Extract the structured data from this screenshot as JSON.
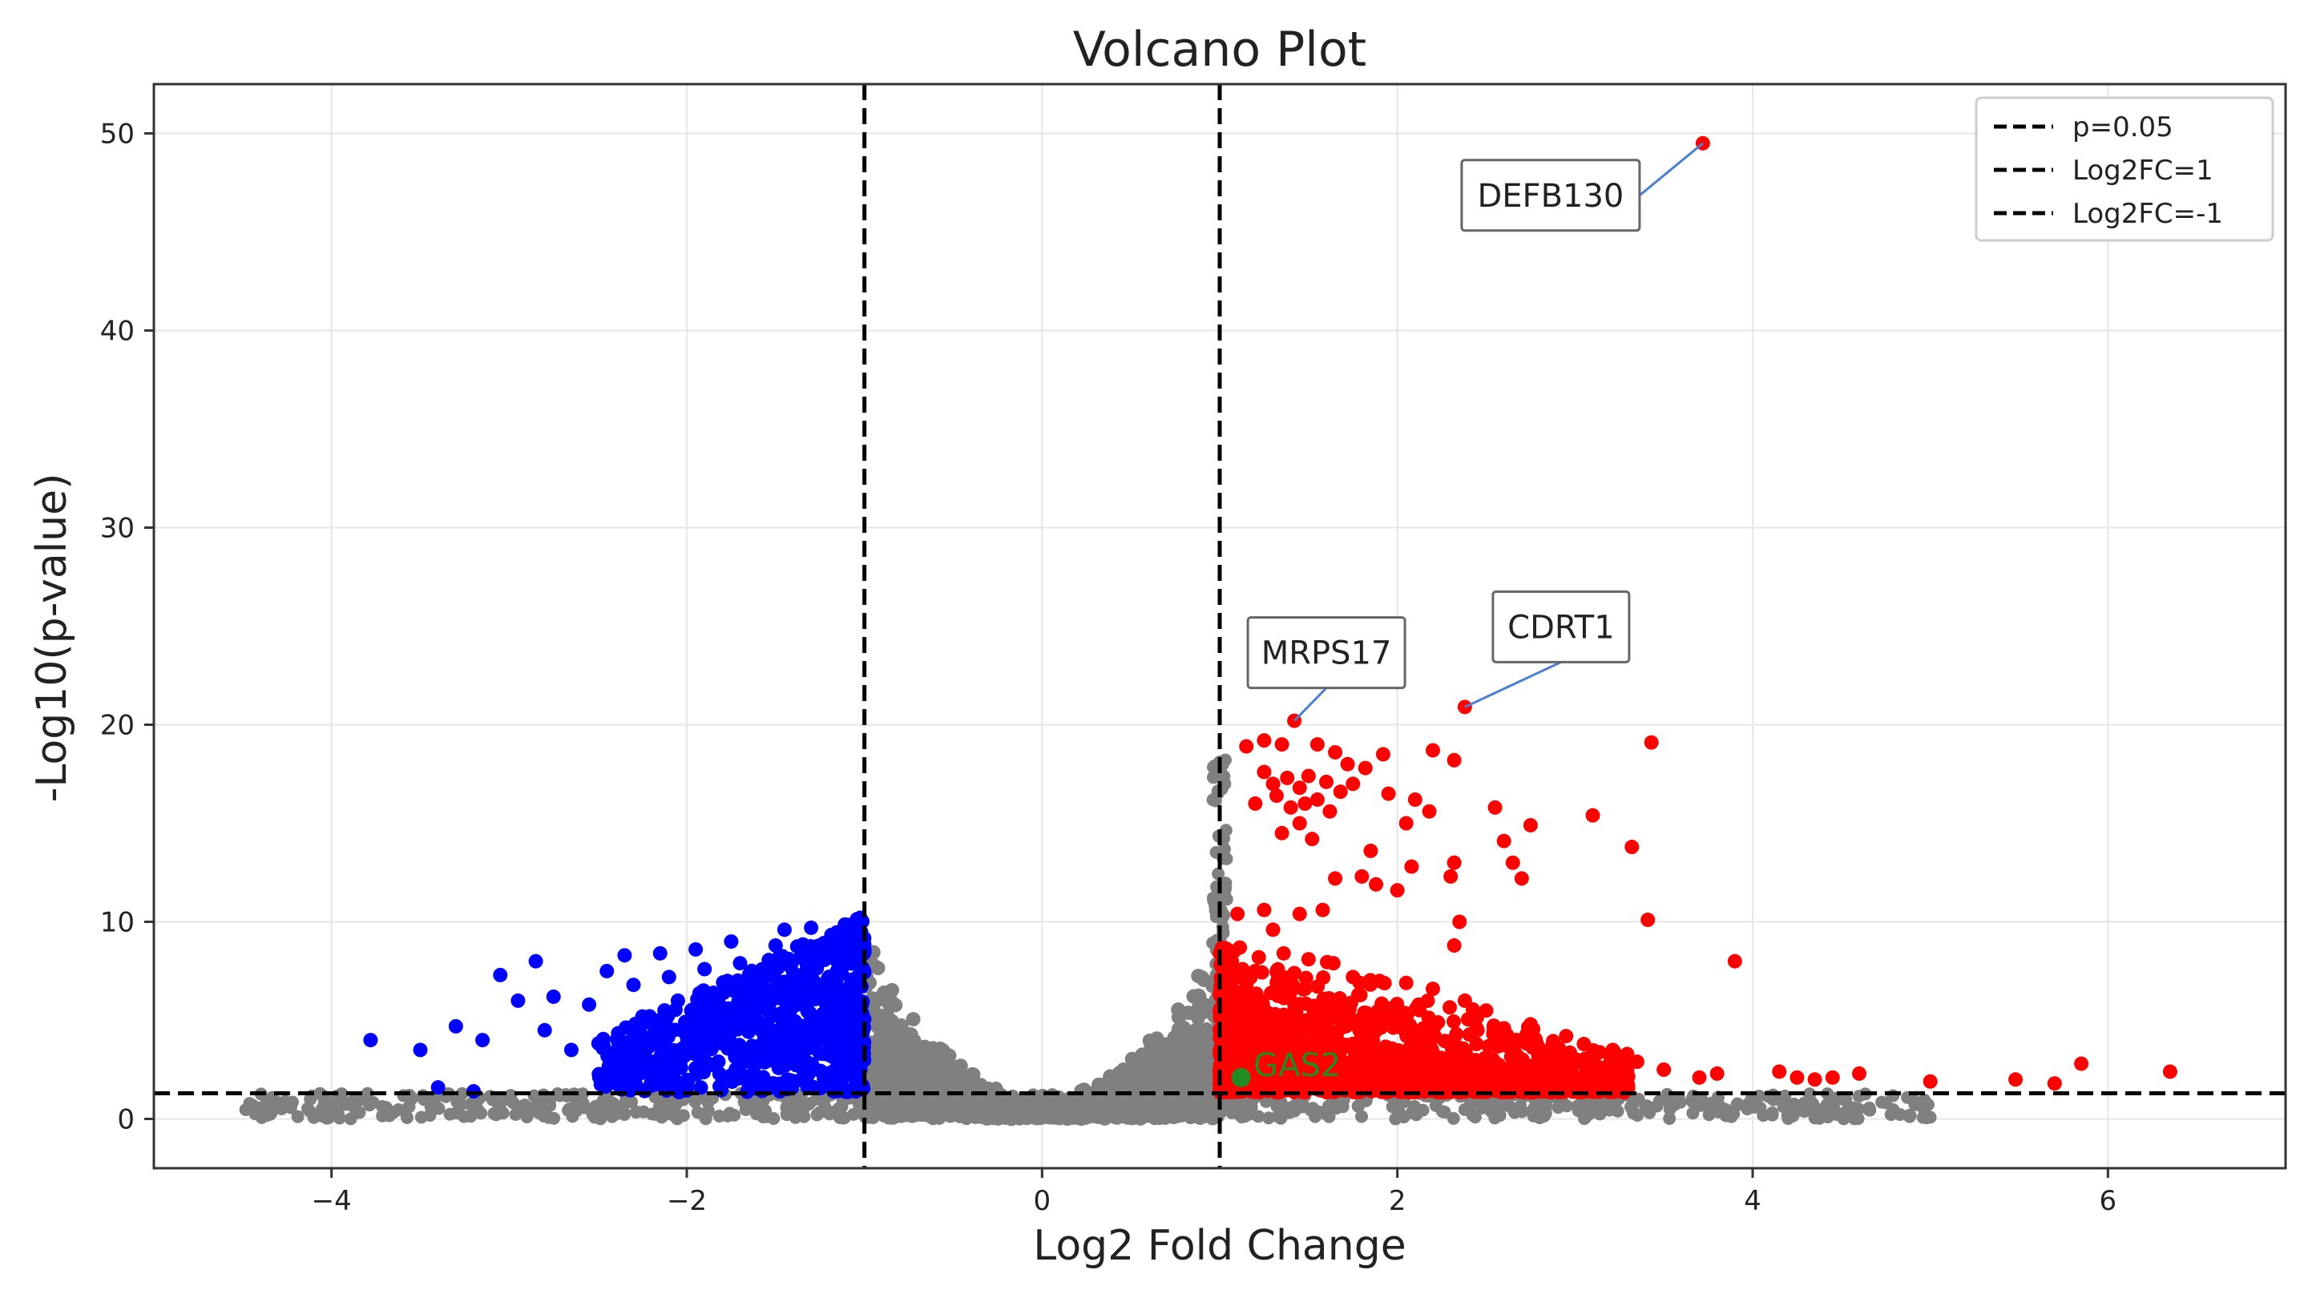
{
  "chart_data": {
    "type": "scatter",
    "title": "Volcano Plot",
    "xlabel": "Log2 Fold Change",
    "ylabel": "-Log10(p-value)",
    "xlim": [
      -5,
      7
    ],
    "ylim": [
      -2.5,
      52.5
    ],
    "x_ticks": [
      -4,
      -2,
      0,
      2,
      4,
      6
    ],
    "x_tick_labels": [
      "−4",
      "−2",
      "0",
      "2",
      "4",
      "6"
    ],
    "y_ticks": [
      0,
      10,
      20,
      30,
      40,
      50
    ],
    "y_tick_labels": [
      "0",
      "10",
      "20",
      "30",
      "40",
      "50"
    ],
    "grid": true,
    "legend": {
      "position": "top-right",
      "entries": [
        {
          "label": "p=0.05",
          "style": "dashed",
          "color": "#000000"
        },
        {
          "label": "Log2FC=1",
          "style": "dashed",
          "color": "#000000"
        },
        {
          "label": "Log2FC=-1",
          "style": "dashed",
          "color": "#000000"
        }
      ]
    },
    "reference_lines": {
      "horizontal": [
        1.3
      ],
      "vertical": [
        -1,
        1
      ]
    },
    "colors": {
      "up": "#ff0000",
      "down": "#0000ff",
      "ns": "#808080",
      "highlight": "#228b22"
    },
    "annotations": [
      {
        "label": "DEFB130",
        "x": 3.72,
        "y": 49.5
      },
      {
        "label": "MRPS17",
        "x": 1.42,
        "y": 20.2
      },
      {
        "label": "CDRT1",
        "x": 2.38,
        "y": 20.9
      }
    ],
    "highlighted_gene": {
      "label": "GAS2",
      "x": 1.12,
      "y": 2.1
    },
    "series": [
      {
        "category": "up",
        "points": [
          [
            3.72,
            49.5
          ],
          [
            1.42,
            20.2
          ],
          [
            2.38,
            20.9
          ],
          [
            1.35,
            19.0
          ],
          [
            1.15,
            18.9
          ],
          [
            1.25,
            19.2
          ],
          [
            1.55,
            19.0
          ],
          [
            1.65,
            18.6
          ],
          [
            1.72,
            18.0
          ],
          [
            1.82,
            17.8
          ],
          [
            1.92,
            18.5
          ],
          [
            2.2,
            18.7
          ],
          [
            2.32,
            18.2
          ],
          [
            1.25,
            17.6
          ],
          [
            1.3,
            17.0
          ],
          [
            1.38,
            17.3
          ],
          [
            1.45,
            16.8
          ],
          [
            1.5,
            17.4
          ],
          [
            1.6,
            17.1
          ],
          [
            1.68,
            16.6
          ],
          [
            1.75,
            17.0
          ],
          [
            1.55,
            16.2
          ],
          [
            1.48,
            16.0
          ],
          [
            1.4,
            15.8
          ],
          [
            1.32,
            16.4
          ],
          [
            1.62,
            15.6
          ],
          [
            1.2,
            16.0
          ],
          [
            1.95,
            16.5
          ],
          [
            2.1,
            16.2
          ],
          [
            1.45,
            15.0
          ],
          [
            1.35,
            14.5
          ],
          [
            1.52,
            14.2
          ],
          [
            2.05,
            15.0
          ],
          [
            2.18,
            15.6
          ],
          [
            3.43,
            19.1
          ],
          [
            3.1,
            15.4
          ],
          [
            2.55,
            15.8
          ],
          [
            2.6,
            14.1
          ],
          [
            2.75,
            14.9
          ],
          [
            2.65,
            13.0
          ],
          [
            3.32,
            13.8
          ],
          [
            2.32,
            13.0
          ],
          [
            1.85,
            13.6
          ],
          [
            2.08,
            12.8
          ],
          [
            2.3,
            12.3
          ],
          [
            1.65,
            12.2
          ],
          [
            1.8,
            12.3
          ],
          [
            2.7,
            12.2
          ],
          [
            1.88,
            11.9
          ],
          [
            2.0,
            11.6
          ],
          [
            1.25,
            10.6
          ],
          [
            1.45,
            10.4
          ],
          [
            1.58,
            10.6
          ],
          [
            1.1,
            10.4
          ],
          [
            1.3,
            9.6
          ],
          [
            3.41,
            10.1
          ],
          [
            2.35,
            10.0
          ],
          [
            2.32,
            8.8
          ],
          [
            3.9,
            8.0
          ],
          [
            1.08,
            8.5
          ],
          [
            1.22,
            8.2
          ],
          [
            1.36,
            8.4
          ],
          [
            1.5,
            8.1
          ],
          [
            1.64,
            7.9
          ],
          [
            1.2,
            7.5
          ],
          [
            1.42,
            7.4
          ],
          [
            1.75,
            7.2
          ],
          [
            1.9,
            7.0
          ],
          [
            2.05,
            6.9
          ],
          [
            2.2,
            6.6
          ],
          [
            2.38,
            6.0
          ],
          [
            2.12,
            5.8
          ],
          [
            1.05,
            7.2
          ],
          [
            1.15,
            6.8
          ],
          [
            1.3,
            6.4
          ],
          [
            1.48,
            6.6
          ],
          [
            1.6,
            6.1
          ],
          [
            1.78,
            6.3
          ],
          [
            1.95,
            5.6
          ],
          [
            2.5,
            5.5
          ],
          [
            2.6,
            4.6
          ],
          [
            2.75,
            4.8
          ],
          [
            2.95,
            4.2
          ],
          [
            3.05,
            3.8
          ],
          [
            3.22,
            3.4
          ],
          [
            3.35,
            2.9
          ],
          [
            3.5,
            2.5
          ],
          [
            3.7,
            2.1
          ],
          [
            3.8,
            2.3
          ],
          [
            4.15,
            2.4
          ],
          [
            4.25,
            2.1
          ],
          [
            4.35,
            2.0
          ],
          [
            4.45,
            2.1
          ],
          [
            4.6,
            2.3
          ],
          [
            5.0,
            1.9
          ],
          [
            5.48,
            2.0
          ],
          [
            5.7,
            1.8
          ],
          [
            5.85,
            2.8
          ],
          [
            6.35,
            2.4
          ]
        ]
      },
      {
        "category": "down",
        "points": [
          [
            -3.78,
            4.0
          ],
          [
            -3.5,
            3.5
          ],
          [
            -3.3,
            4.7
          ],
          [
            -3.15,
            4.0
          ],
          [
            -3.05,
            7.3
          ],
          [
            -2.95,
            6.0
          ],
          [
            -2.85,
            8.0
          ],
          [
            -2.75,
            6.2
          ],
          [
            -2.8,
            4.5
          ],
          [
            -2.65,
            3.5
          ],
          [
            -2.55,
            5.8
          ],
          [
            -2.45,
            7.5
          ],
          [
            -2.35,
            8.3
          ],
          [
            -2.3,
            6.8
          ],
          [
            -2.25,
            5.2
          ],
          [
            -2.15,
            8.4
          ],
          [
            -2.1,
            7.2
          ],
          [
            -2.05,
            6.0
          ],
          [
            -2.0,
            4.2
          ],
          [
            -1.95,
            8.6
          ],
          [
            -1.9,
            7.6
          ],
          [
            -1.85,
            6.4
          ],
          [
            -1.8,
            5.1
          ],
          [
            -1.75,
            9.0
          ],
          [
            -1.7,
            7.9
          ],
          [
            -1.62,
            6.8
          ],
          [
            -1.58,
            5.6
          ],
          [
            -1.55,
            4.4
          ],
          [
            -1.5,
            8.8
          ],
          [
            -1.45,
            9.6
          ],
          [
            -1.4,
            7.4
          ],
          [
            -1.35,
            6.2
          ],
          [
            -1.3,
            9.7
          ],
          [
            -1.25,
            8.2
          ],
          [
            -1.22,
            5.9
          ],
          [
            -1.18,
            4.6
          ],
          [
            -1.15,
            9.3
          ],
          [
            -1.1,
            7.9
          ],
          [
            -1.08,
            6.5
          ],
          [
            -1.05,
            5.3
          ],
          [
            -1.03,
            9.1
          ],
          [
            -1.02,
            4.0
          ],
          [
            -3.4,
            1.6
          ],
          [
            -3.2,
            1.4
          ]
        ]
      }
    ]
  }
}
